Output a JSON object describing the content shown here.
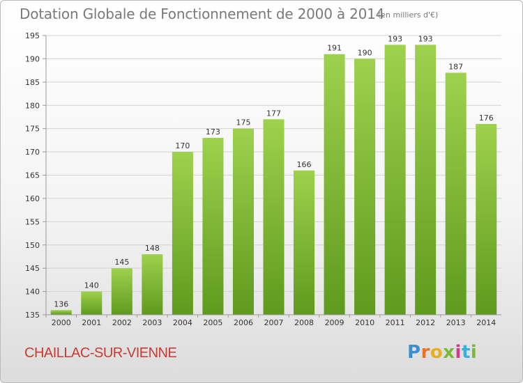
{
  "header": {
    "title": "Dotation Globale de Fonctionnement de 2000 à 2014",
    "subtitle": "(en milliers d'€)"
  },
  "footer": {
    "town": "CHAILLAC-SUR-VIENNE",
    "logo_letters": [
      "P",
      "r",
      "o",
      "x",
      "i",
      "t",
      "i"
    ],
    "logo_colors": [
      "#3a8fd0",
      "#e8742a",
      "#e8b020",
      "#7ab83a",
      "#d23a8a",
      "#3ab0d8",
      "#7ab83a"
    ]
  },
  "chart_data": {
    "type": "bar",
    "title": "Dotation Globale de Fonctionnement de 2000 à 2014",
    "subtitle": "(en milliers d'€)",
    "categories": [
      "2000",
      "2001",
      "2002",
      "2003",
      "2004",
      "2005",
      "2006",
      "2007",
      "2008",
      "2009",
      "2010",
      "2011",
      "2012",
      "2013",
      "2014"
    ],
    "values": [
      136,
      140,
      145,
      148,
      170,
      173,
      175,
      177,
      166,
      191,
      190,
      193,
      193,
      187,
      176
    ],
    "ylim": [
      135,
      195
    ],
    "yticks": [
      135,
      140,
      145,
      150,
      155,
      160,
      165,
      170,
      175,
      180,
      185,
      190,
      195
    ],
    "grid": true,
    "bar_color": "#8cc63f",
    "bar_color_dark": "#5f9a1e"
  }
}
